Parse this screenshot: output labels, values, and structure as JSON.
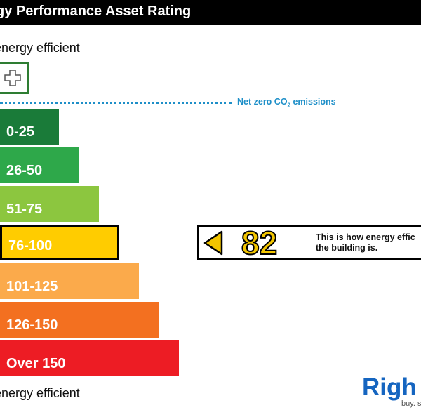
{
  "header": {
    "title": "gy Performance Asset Rating"
  },
  "scale": {
    "top_label": "energy efficient",
    "bottom_label": "energy efficient",
    "net_zero_label_main": "Net zero CO",
    "net_zero_label_sub": "2",
    "net_zero_label_tail": " emissions"
  },
  "chart_data": {
    "type": "bar",
    "categories": [
      "0-25",
      "26-50",
      "51-75",
      "76-100",
      "101-125",
      "126-150",
      "Over 150"
    ],
    "colors": [
      "#1a7b39",
      "#2ea84a",
      "#8cc63f",
      "#ffcc00",
      "#fbaa4b",
      "#f37020",
      "#ed1c24"
    ],
    "rating": 82,
    "rating_band": "76-100",
    "rating_color": "#f2c500"
  },
  "rating_panel": {
    "value": "82",
    "caption_line1": "This is how energy effic",
    "caption_line2": "the building is."
  },
  "brand": {
    "name": "Righ",
    "tagline": "buy. s"
  }
}
